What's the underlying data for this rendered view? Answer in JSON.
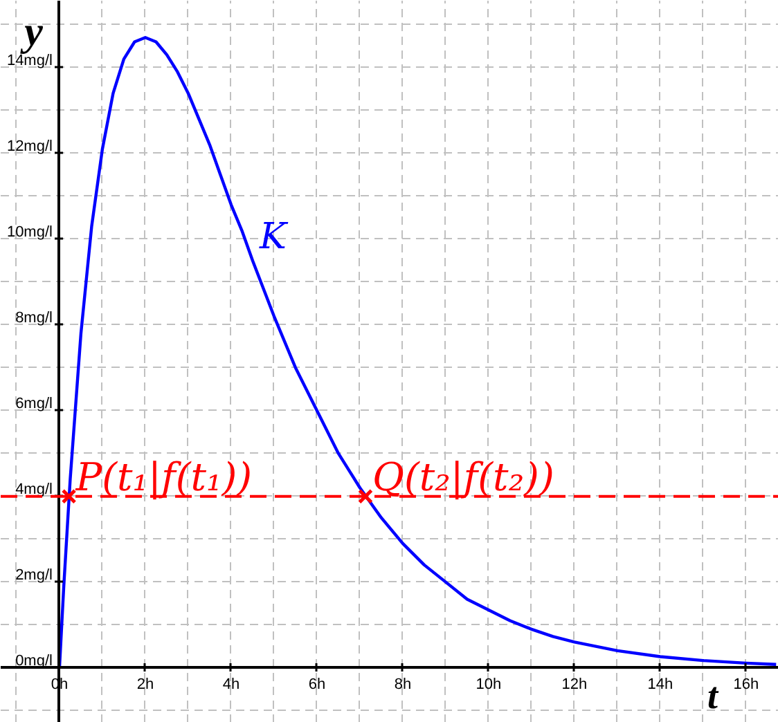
{
  "chart_data": {
    "type": "line",
    "xlabel": "t",
    "ylabel": "y",
    "xlim": [
      -1.37,
      16.76
    ],
    "ylim": [
      -1.28,
      15.56
    ],
    "xticks": [
      {
        "value": 0,
        "label": "0h"
      },
      {
        "value": 2,
        "label": "2h"
      },
      {
        "value": 4,
        "label": "4h"
      },
      {
        "value": 6,
        "label": "6h"
      },
      {
        "value": 8,
        "label": "8h"
      },
      {
        "value": 10,
        "label": "10h"
      },
      {
        "value": 12,
        "label": "12h"
      },
      {
        "value": 14,
        "label": "14h"
      },
      {
        "value": 16,
        "label": "16h"
      }
    ],
    "yticks": [
      {
        "value": 0,
        "label": "0mg/l"
      },
      {
        "value": 2,
        "label": "2mg/l"
      },
      {
        "value": 4,
        "label": "4mg/l"
      },
      {
        "value": 6,
        "label": "6mg/l"
      },
      {
        "value": 8,
        "label": "8mg/l"
      },
      {
        "value": 10,
        "label": "10mg/l"
      },
      {
        "value": 12,
        "label": "12mg/l"
      },
      {
        "value": 14,
        "label": "14mg/l"
      }
    ],
    "grid": true,
    "series": [
      {
        "name": "K",
        "color": "#0000ff",
        "x": [
          0,
          0.1,
          0.25,
          0.5,
          0.75,
          1,
          1.25,
          1.5,
          1.75,
          2,
          2.25,
          2.5,
          2.75,
          3,
          3.25,
          3.5,
          3.75,
          4,
          4.25,
          4.5,
          5,
          5.5,
          6,
          6.5,
          7,
          7.5,
          8,
          8.5,
          9,
          9.5,
          10,
          10.5,
          11,
          11.5,
          12,
          13,
          14,
          15,
          16,
          16.7
        ],
        "values": [
          0,
          1.9,
          4.4,
          7.8,
          10.3,
          12.1,
          13.4,
          14.2,
          14.6,
          14.7,
          14.6,
          14.3,
          13.9,
          13.4,
          12.8,
          12.2,
          11.5,
          10.8,
          10.2,
          9.5,
          8.2,
          7.0,
          6.0,
          5.0,
          4.2,
          3.5,
          2.9,
          2.4,
          2.0,
          1.6,
          1.35,
          1.1,
          0.9,
          0.73,
          0.6,
          0.4,
          0.26,
          0.17,
          0.11,
          0.08
        ]
      },
      {
        "type": "scatter",
        "color": "#ff0000",
        "marker": "cross",
        "x": [
          0.22,
          7.13
        ],
        "values": [
          4,
          4
        ]
      }
    ],
    "ref_lines": [
      {
        "axis": "y",
        "value": 4,
        "color": "#ff0000",
        "line_style": "dashed"
      }
    ],
    "annotations": [
      {
        "text": "P(t₁|f(t₁))",
        "x": 0.22,
        "y": 4
      },
      {
        "text": "Q(t₂|f(t₂))",
        "x": 7.13,
        "y": 4
      }
    ]
  }
}
